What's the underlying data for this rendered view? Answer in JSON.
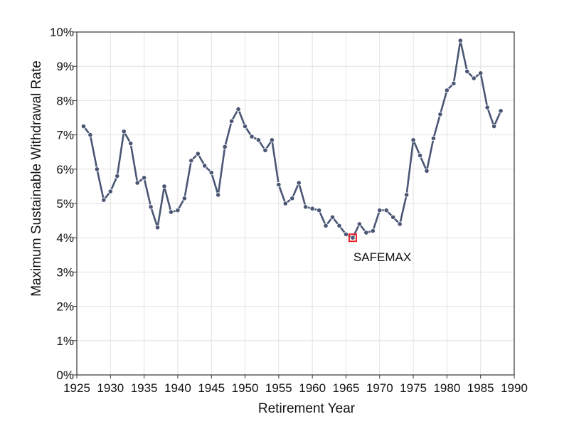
{
  "chart_data": {
    "type": "line",
    "xlabel": "Retirement Year",
    "ylabel": "Maximum Sustainable Withdrawal Rate",
    "xlim": [
      1925,
      1990
    ],
    "ylim": [
      0,
      10
    ],
    "x_ticks": [
      1925,
      1930,
      1935,
      1940,
      1945,
      1950,
      1955,
      1960,
      1965,
      1970,
      1975,
      1980,
      1985,
      1990
    ],
    "x_tick_labels": [
      "1925",
      "1930",
      "1935",
      "1940",
      "1945",
      "1950",
      "1955",
      "1960",
      "1965",
      "1970",
      "1975",
      "1980",
      "1985",
      "1990"
    ],
    "y_ticks": [
      0,
      1,
      2,
      3,
      4,
      5,
      6,
      7,
      8,
      9,
      10
    ],
    "y_tick_labels": [
      "0%",
      "1%",
      "2%",
      "3%",
      "4%",
      "5%",
      "6%",
      "7%",
      "8%",
      "9%",
      "10%"
    ],
    "grid": true,
    "line_color": "#4a5674",
    "highlight_color": "#e8202a",
    "series": [
      {
        "x": [
          1926,
          1927,
          1928,
          1929,
          1930,
          1931,
          1932,
          1933,
          1934,
          1935,
          1936,
          1937,
          1938,
          1939,
          1940,
          1941,
          1942,
          1943,
          1944,
          1945,
          1946,
          1947,
          1948,
          1949,
          1950,
          1951,
          1952,
          1953,
          1954,
          1955,
          1956,
          1957,
          1958,
          1959,
          1960,
          1961,
          1962,
          1963,
          1964,
          1965,
          1966,
          1967,
          1968,
          1969,
          1970,
          1971,
          1972,
          1973,
          1974,
          1975,
          1976,
          1977,
          1978,
          1979,
          1980,
          1981,
          1982,
          1983,
          1984,
          1985,
          1986,
          1987,
          1988
        ],
        "y": [
          7.25,
          7.0,
          6.0,
          5.1,
          5.35,
          5.8,
          7.1,
          6.75,
          5.6,
          5.75,
          4.9,
          4.3,
          5.5,
          4.75,
          4.8,
          5.15,
          6.25,
          6.45,
          6.1,
          5.9,
          5.25,
          6.65,
          7.4,
          7.75,
          7.25,
          6.95,
          6.85,
          6.55,
          6.85,
          5.55,
          5.0,
          5.15,
          5.6,
          4.9,
          4.85,
          4.8,
          4.35,
          4.6,
          4.35,
          4.1,
          4.0,
          4.4,
          4.15,
          4.2,
          4.8,
          4.8,
          4.6,
          4.4,
          5.25,
          6.85,
          6.4,
          5.95,
          6.9,
          7.6,
          8.3,
          8.5,
          9.75,
          8.85,
          8.65,
          8.8,
          7.8,
          7.25,
          7.7
        ]
      }
    ],
    "annotations": [
      {
        "text": "SAFEMAX",
        "x": 1966,
        "y": 4.0
      }
    ]
  }
}
